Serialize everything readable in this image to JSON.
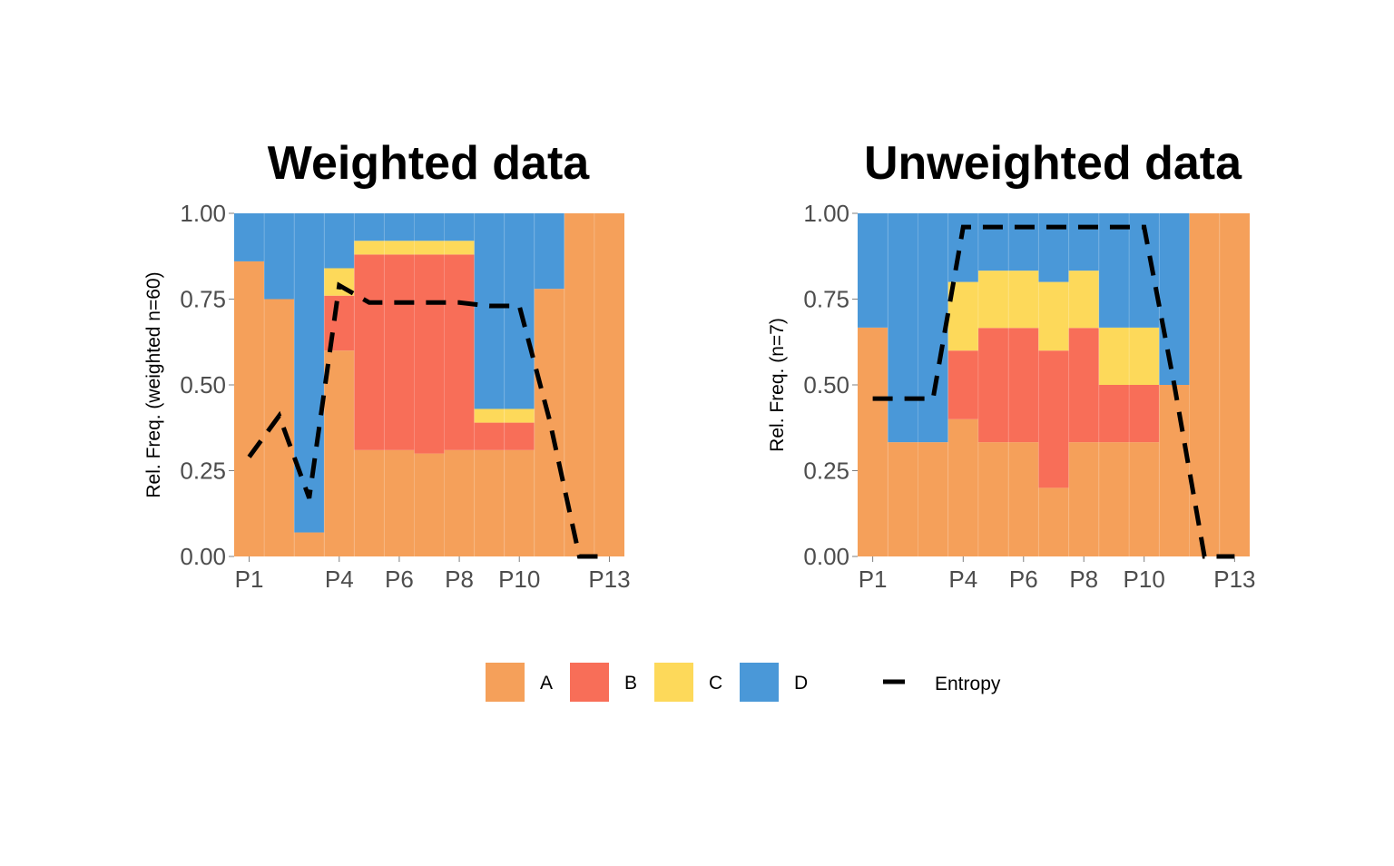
{
  "chart_data": [
    {
      "type": "bar",
      "stacked": true,
      "title": "Weighted data",
      "xlabel": "",
      "ylabel": "Rel. Freq. (weighted n=60)",
      "ylim": [
        0,
        1
      ],
      "yticks": [
        "0.00",
        "0.25",
        "0.50",
        "0.75",
        "1.00"
      ],
      "categories": [
        "P1",
        "P2",
        "P3",
        "P4",
        "P5",
        "P6",
        "P7",
        "P8",
        "P9",
        "P10",
        "P11",
        "P12",
        "P13"
      ],
      "xtick_labels": [
        "P1",
        "P4",
        "P6",
        "P8",
        "P10",
        "P13"
      ],
      "series": [
        {
          "name": "A",
          "values": [
            0.86,
            0.75,
            0.07,
            0.6,
            0.31,
            0.31,
            0.3,
            0.31,
            0.31,
            0.31,
            0.78,
            1.0,
            1.0
          ]
        },
        {
          "name": "B",
          "values": [
            0.0,
            0.0,
            0.0,
            0.16,
            0.57,
            0.57,
            0.58,
            0.57,
            0.08,
            0.08,
            0.0,
            0.0,
            0.0
          ]
        },
        {
          "name": "C",
          "values": [
            0.0,
            0.0,
            0.0,
            0.08,
            0.04,
            0.04,
            0.04,
            0.04,
            0.04,
            0.04,
            0.0,
            0.0,
            0.0
          ]
        },
        {
          "name": "D",
          "values": [
            0.14,
            0.25,
            0.93,
            0.16,
            0.08,
            0.08,
            0.08,
            0.08,
            0.57,
            0.57,
            0.22,
            0.0,
            0.0
          ]
        }
      ],
      "line": {
        "name": "Entropy",
        "style": "dashed",
        "values": [
          0.29,
          0.41,
          0.17,
          0.79,
          0.74,
          0.74,
          0.74,
          0.74,
          0.73,
          0.73,
          0.4,
          0.0,
          0.0
        ]
      },
      "grid": false
    },
    {
      "type": "bar",
      "stacked": true,
      "title": "Unweighted data",
      "xlabel": "",
      "ylabel": "Rel. Freq. (n=7)",
      "ylim": [
        0,
        1
      ],
      "yticks": [
        "0.00",
        "0.25",
        "0.50",
        "0.75",
        "1.00"
      ],
      "categories": [
        "P1",
        "P2",
        "P3",
        "P4",
        "P5",
        "P6",
        "P7",
        "P8",
        "P9",
        "P10",
        "P11",
        "P12",
        "P13"
      ],
      "xtick_labels": [
        "P1",
        "P4",
        "P6",
        "P8",
        "P10",
        "P13"
      ],
      "series": [
        {
          "name": "A",
          "values": [
            0.667,
            0.333,
            0.333,
            0.4,
            0.333,
            0.333,
            0.2,
            0.333,
            0.333,
            0.333,
            0.5,
            1.0,
            1.0
          ]
        },
        {
          "name": "B",
          "values": [
            0.0,
            0.0,
            0.0,
            0.2,
            0.333,
            0.333,
            0.4,
            0.333,
            0.167,
            0.167,
            0.0,
            0.0,
            0.0
          ]
        },
        {
          "name": "C",
          "values": [
            0.0,
            0.0,
            0.0,
            0.2,
            0.167,
            0.167,
            0.2,
            0.167,
            0.167,
            0.167,
            0.0,
            0.0,
            0.0
          ]
        },
        {
          "name": "D",
          "values": [
            0.333,
            0.667,
            0.667,
            0.2,
            0.167,
            0.167,
            0.2,
            0.167,
            0.333,
            0.333,
            0.5,
            0.0,
            0.0
          ]
        }
      ],
      "line": {
        "name": "Entropy",
        "style": "dashed",
        "values": [
          0.46,
          0.46,
          0.46,
          0.96,
          0.96,
          0.96,
          0.96,
          0.96,
          0.96,
          0.96,
          0.5,
          0.0,
          0.0
        ]
      },
      "grid": false
    }
  ],
  "legend": {
    "position": "bottom",
    "items": [
      {
        "label": "A",
        "color": "#F5A05A"
      },
      {
        "label": "B",
        "color": "#F86E58"
      },
      {
        "label": "C",
        "color": "#FDD95A"
      },
      {
        "label": "D",
        "color": "#4A98D8"
      }
    ],
    "line_item": {
      "label": "Entropy",
      "color": "#000000"
    }
  },
  "colors": {
    "A": "#F5A05A",
    "B": "#F86E58",
    "C": "#FDD95A",
    "D": "#4A98D8",
    "entropy": "#000000"
  }
}
